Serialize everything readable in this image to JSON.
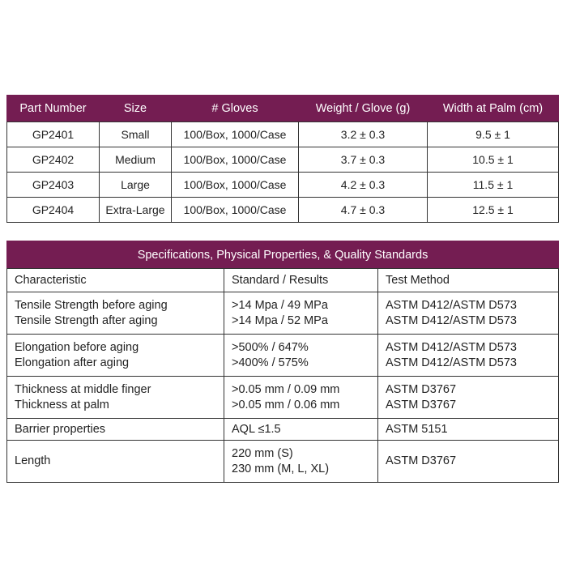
{
  "product_table": {
    "headers": [
      "Part Number",
      "Size",
      "# Gloves",
      "Weight / Glove (g)",
      "Width at Palm (cm)"
    ],
    "rows": [
      [
        "GP2401",
        "Small",
        "100/Box, 1000/Case",
        "3.2 ± 0.3",
        "9.5 ± 1"
      ],
      [
        "GP2402",
        "Medium",
        "100/Box, 1000/Case",
        "3.7 ± 0.3",
        "10.5 ± 1"
      ],
      [
        "GP2403",
        "Large",
        "100/Box, 1000/Case",
        "4.2 ± 0.3",
        "11.5 ± 1"
      ],
      [
        "GP2404",
        "Extra-Large",
        "100/Box, 1000/Case",
        "4.7 ± 0.3",
        "12.5 ± 1"
      ]
    ]
  },
  "spec_table": {
    "title": "Specifications, Physical Properties, & Quality Standards",
    "headers": [
      "Characteristic",
      "Standard / Results",
      "Test Method"
    ],
    "rows": [
      {
        "c": [
          "Tensile Strength before aging",
          "Tensile Strength after aging"
        ],
        "s": [
          ">14 Mpa / 49 MPa",
          ">14 Mpa / 52 MPa"
        ],
        "t": [
          "ASTM D412/ASTM D573",
          "ASTM D412/ASTM D573"
        ]
      },
      {
        "c": [
          "Elongation before aging",
          "Elongation after aging"
        ],
        "s": [
          ">500% / 647%",
          ">400% / 575%"
        ],
        "t": [
          "ASTM D412/ASTM D573",
          "ASTM D412/ASTM D573"
        ]
      },
      {
        "c": [
          "Thickness at middle finger",
          "Thickness at palm"
        ],
        "s": [
          ">0.05 mm / 0.09 mm",
          ">0.05 mm / 0.06 mm"
        ],
        "t": [
          "ASTM D3767",
          "ASTM D3767"
        ]
      },
      {
        "c": [
          "Barrier properties"
        ],
        "s": [
          "AQL ≤1.5"
        ],
        "t": [
          "ASTM 5151"
        ]
      },
      {
        "c": [
          "Length"
        ],
        "s": [
          "220 mm (S)",
          "230 mm (M, L, XL)"
        ],
        "t": [
          "ASTM D3767"
        ]
      }
    ]
  },
  "colors": {
    "header": "#741d52"
  }
}
